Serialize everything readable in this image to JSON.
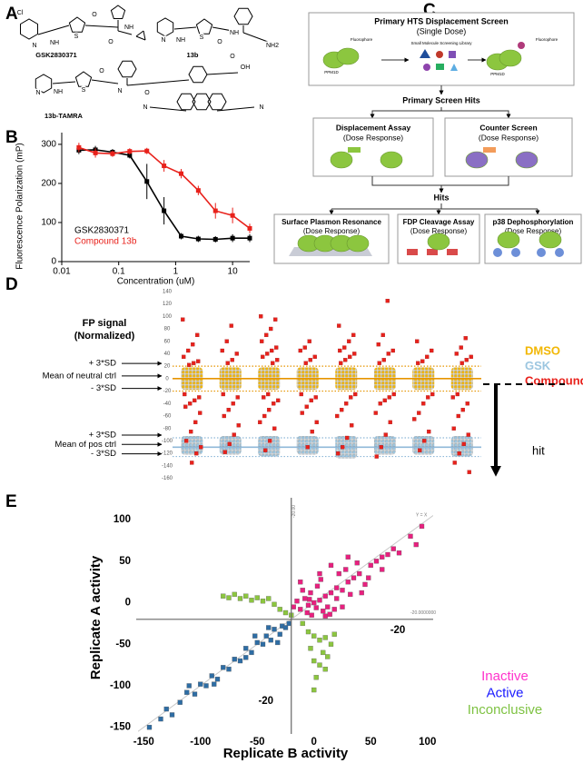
{
  "panels": {
    "a": "A",
    "b": "B",
    "c": "C",
    "d": "D",
    "e": "E"
  },
  "structures": {
    "names": [
      "GSK2830371",
      "13b",
      "13b-TAMRA"
    ],
    "atoms": [
      "Cl",
      "N",
      "NH",
      "S",
      "O",
      "O",
      "NH",
      "N",
      "NH",
      "S",
      "O",
      "NH",
      "NH2",
      "N",
      "NH",
      "S",
      "O",
      "N",
      "O",
      "OH",
      "O",
      "N",
      "N"
    ]
  },
  "flowchart": {
    "primary": {
      "title": "Primary HTS Displacement Screen",
      "subtitle": "(Single Dose)",
      "labels": [
        "Fluorophore",
        "PPM1D",
        "Small Molecule Screening Library",
        "PPM1D",
        "Fluorophore"
      ]
    },
    "primary_hits": "Primary Screen Hits",
    "secondary": [
      {
        "title": "Displacement Assay",
        "subtitle": "(Dose Response)"
      },
      {
        "title": "Counter Screen",
        "subtitle": "(Dose Response)"
      }
    ],
    "hits": "Hits",
    "tertiary": [
      {
        "title": "Surface Plasmon Resonance",
        "subtitle": "(Dose Response)"
      },
      {
        "title": "FDP Cleavage Assay",
        "subtitle": "(Dose Response)"
      },
      {
        "title": "p38 Dephosphorylation",
        "subtitle": "(Dose Response)"
      }
    ]
  },
  "chart_data": [
    {
      "type": "line",
      "xlabel": "Concentration (uM)",
      "ylabel": "Fluorescence Polarization (mP)",
      "xscale": "log",
      "xlim": [
        0.01,
        20
      ],
      "xticks": [
        0.01,
        0.1,
        1,
        10
      ],
      "ylim": [
        0,
        330
      ],
      "yticks": [
        0,
        100,
        200,
        300
      ],
      "x": [
        0.02,
        0.039,
        0.078,
        0.156,
        0.3125,
        0.625,
        1.25,
        2.5,
        5,
        10,
        20
      ],
      "series": [
        {
          "name": "GSK2830371",
          "color": "#000000",
          "values": [
            285,
            286,
            280,
            272,
            205,
            130,
            65,
            58,
            57,
            60,
            60
          ],
          "errors": [
            10,
            10,
            8,
            8,
            45,
            35,
            8,
            8,
            8,
            10,
            10
          ]
        },
        {
          "name": "Compound 13b",
          "color": "#e8211b",
          "values": [
            292,
            278,
            276,
            282,
            283,
            245,
            225,
            182,
            130,
            118,
            85
          ],
          "errors": [
            12,
            12,
            8,
            8,
            8,
            15,
            12,
            12,
            20,
            20,
            12
          ]
        }
      ]
    },
    {
      "type": "strip",
      "ylabel": [
        "FP signal",
        "(Normalized)"
      ],
      "ylim": [
        -165,
        150
      ],
      "yticks": [
        140,
        120,
        100,
        80,
        60,
        40,
        20,
        0,
        -20,
        -40,
        -60,
        -80,
        -100,
        -120,
        -140,
        -160
      ],
      "reference_lines": [
        {
          "label": "+ 3*SD",
          "value": 20,
          "color": "#e69500",
          "style": "dotted"
        },
        {
          "label": "Mean of neutral ctrl",
          "value": 0,
          "color": "#e69500",
          "style": "solid"
        },
        {
          "label": "- 3*SD",
          "value": -20,
          "color": "#e69500",
          "style": "dotted"
        },
        {
          "label": "+ 3*SD",
          "value": -95,
          "color": "#8fb8d8",
          "style": "dotted"
        },
        {
          "label": "Mean of pos ctrl",
          "value": -110,
          "color": "#8fb8d8",
          "style": "solid"
        },
        {
          "label": "- 3*SD",
          "value": -125,
          "color": "#8fb8d8",
          "style": "dotted"
        }
      ],
      "series": [
        {
          "name": "DMSO",
          "color": "#f2b705",
          "ranges": [
            [
              -18,
              18
            ],
            [
              -18,
              18
            ],
            [
              -18,
              18
            ],
            [
              -18,
              18
            ],
            [
              -18,
              18
            ],
            [
              -18,
              18
            ],
            [
              -18,
              18
            ],
            [
              -18,
              18
            ]
          ]
        },
        {
          "name": "GSK",
          "color": "#9cc6e0",
          "ranges": [
            [
              -122,
              -92
            ],
            [
              -122,
              -92
            ],
            [
              -125,
              -92
            ],
            [
              -122,
              -92
            ],
            [
              -128,
              -92
            ],
            [
              -122,
              -92
            ],
            [
              -122,
              -92
            ],
            [
              -125,
              -92
            ]
          ]
        },
        {
          "name": "Compounds",
          "color": "#e8211b",
          "values": [
            [
              95,
              70,
              55,
              45,
              35,
              28,
              25,
              22,
              -25,
              -30,
              -35,
              -40,
              -45,
              -55,
              -70,
              -85,
              -100,
              -110,
              -120,
              -135
            ],
            [
              85,
              60,
              45,
              40,
              30,
              25,
              -25,
              -30,
              -40,
              -50,
              -60,
              -75,
              -90,
              -105,
              -118
            ],
            [
              100,
              95,
              80,
              70,
              60,
              50,
              45,
              40,
              35,
              30,
              25,
              -25,
              -30,
              -35,
              -40,
              -50,
              -60,
              -70,
              -80,
              -100,
              -115
            ],
            [
              60,
              50,
              45,
              35,
              30,
              25,
              -25,
              -30,
              -35,
              -45,
              -55,
              -70,
              -85,
              -110
            ],
            [
              85,
              70,
              60,
              50,
              45,
              40,
              35,
              30,
              25,
              -25,
              -30,
              -40,
              -50,
              -60,
              -75,
              -95,
              -110,
              -120
            ],
            [
              125,
              70,
              55,
              45,
              40,
              30,
              25,
              -25,
              -30,
              -35,
              -40,
              -55,
              -70,
              -90,
              -110,
              -125
            ],
            [
              60,
              45,
              35,
              28,
              25,
              -25,
              -30,
              -40,
              -55,
              -65,
              -85,
              -100,
              -115
            ],
            [
              65,
              50,
              40,
              35,
              30,
              25,
              -25,
              -30,
              -40,
              -50,
              -60,
              -80,
              -90,
              -105,
              -120,
              -135,
              -150
            ]
          ]
        }
      ],
      "annotation": "hit"
    },
    {
      "type": "scatter",
      "xlabel": "Replicate B activity",
      "ylabel": "Replicate A activity",
      "xlim": [
        -155,
        105
      ],
      "ylim": [
        -158,
        122
      ],
      "xticks": [
        -150,
        -100,
        -50,
        0,
        50,
        100
      ],
      "yticks": [
        -150,
        -100,
        -50,
        0,
        50,
        100
      ],
      "reference_lines": [
        {
          "axis": "x",
          "value": -20,
          "label": "-20"
        },
        {
          "axis": "y",
          "value": -20,
          "label": "-20"
        }
      ],
      "diagonal": {
        "label": "Y = X"
      },
      "small_labels": [
        "-20.00",
        "-20.0000000"
      ],
      "series": [
        {
          "name": "Inactive",
          "color": "#e8207f",
          "label_color": "#ff33cc",
          "x": [
            0,
            5,
            -5,
            10,
            -8,
            15,
            20,
            -12,
            8,
            25,
            30,
            -15,
            3,
            12,
            -3,
            18,
            35,
            40,
            28,
            45,
            50,
            22,
            -10,
            6,
            14,
            -6,
            32,
            38,
            55,
            60,
            65,
            70,
            85,
            95,
            90,
            -18,
            -2,
            10,
            25,
            48,
            30,
            15,
            5,
            -12,
            20,
            -4,
            2,
            60,
            42,
            75
          ],
          "y": [
            0,
            3,
            -3,
            8,
            5,
            12,
            18,
            -8,
            -10,
            15,
            25,
            2,
            20,
            -5,
            12,
            -8,
            30,
            35,
            40,
            22,
            45,
            35,
            15,
            28,
            -14,
            -12,
            10,
            48,
            50,
            55,
            58,
            65,
            80,
            92,
            70,
            -5,
            -15,
            -16,
            -5,
            30,
            55,
            45,
            35,
            25,
            5,
            4,
            -6,
            40,
            12,
            60
          ]
        },
        {
          "name": "Active",
          "color": "#2e6da4",
          "label_color": "#1a1aff",
          "x": [
            -145,
            -135,
            -130,
            -125,
            -118,
            -112,
            -105,
            -100,
            -95,
            -90,
            -85,
            -80,
            -75,
            -70,
            -65,
            -60,
            -55,
            -50,
            -45,
            -42,
            -38,
            -35,
            -30,
            -28,
            -25,
            -22,
            -40,
            -52,
            -32,
            -60,
            -88,
            -110
          ],
          "y": [
            -150,
            -140,
            -128,
            -135,
            -120,
            -108,
            -110,
            -98,
            -100,
            -88,
            -92,
            -78,
            -80,
            -68,
            -70,
            -55,
            -60,
            -48,
            -50,
            -40,
            -45,
            -32,
            -38,
            -28,
            -30,
            -25,
            -30,
            -40,
            -48,
            -66,
            -98,
            -100
          ]
        },
        {
          "name": "Inconclusive",
          "color": "#8cc63f",
          "label_color": "#7ec242",
          "x": [
            -80,
            -75,
            -70,
            -65,
            -60,
            -55,
            -50,
            -45,
            -40,
            -35,
            -30,
            -20,
            -10,
            -5,
            0,
            5,
            10,
            15,
            -3,
            8,
            12,
            0,
            5,
            10,
            2,
            0,
            -25,
            18
          ],
          "y": [
            8,
            6,
            10,
            5,
            8,
            3,
            6,
            2,
            5,
            -2,
            -8,
            -15,
            -25,
            -35,
            -40,
            -45,
            -42,
            -50,
            -55,
            -60,
            -65,
            -70,
            -75,
            -80,
            -90,
            -105,
            -12,
            -38
          ]
        }
      ]
    }
  ]
}
